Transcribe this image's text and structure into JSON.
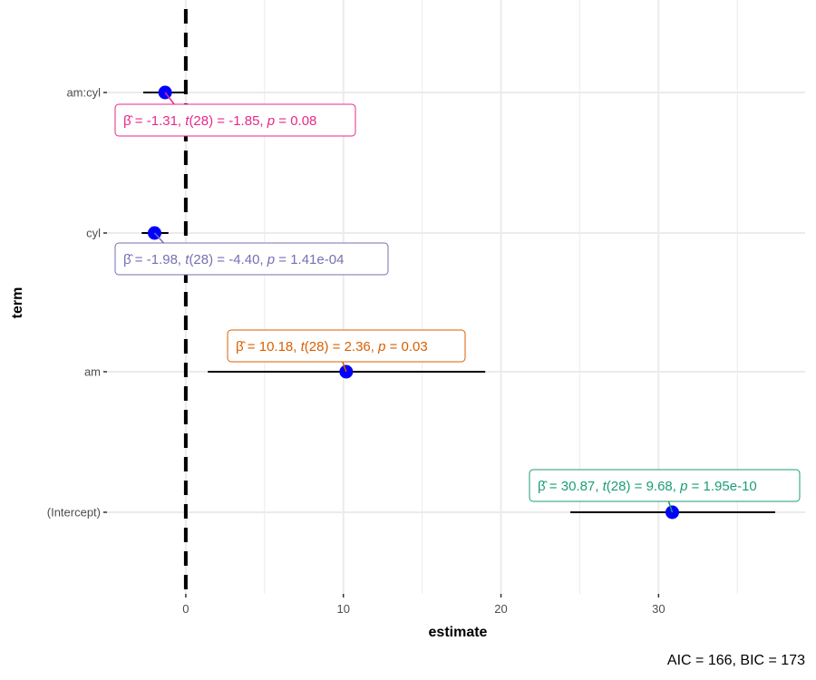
{
  "chart_data": {
    "type": "dot-whisker",
    "xlabel": "estimate",
    "ylabel": "term",
    "xlim": [
      -5,
      39.3
    ],
    "x_ticks": [
      0,
      10,
      20,
      30
    ],
    "x_minor_grid": [
      5,
      15,
      25,
      35
    ],
    "grid": true,
    "reference_line": {
      "x": 0,
      "style": "dashed",
      "color": "#000000"
    },
    "point_color": "#0000FF",
    "caption": "AIC = 166, BIC = 173",
    "terms": [
      {
        "term": "am:cyl",
        "estimate": -1.31,
        "conf_low": -2.7,
        "conf_high": 0.1,
        "df": "28",
        "estimate_label": "-1.31",
        "statistic_label": "-1.85",
        "p_label": "0.08",
        "color": "#E7298A"
      },
      {
        "term": "cyl",
        "estimate": -1.98,
        "conf_low": -2.8,
        "conf_high": -1.1,
        "df": "28",
        "estimate_label": "-1.98",
        "statistic_label": "-4.40",
        "p_label": "1.41e-04",
        "color": "#7570B3"
      },
      {
        "term": "am",
        "estimate": 10.18,
        "conf_low": 1.4,
        "conf_high": 19.0,
        "df": "28",
        "estimate_label": "10.18",
        "statistic_label": "2.36",
        "p_label": "0.03",
        "color": "#D95F02"
      },
      {
        "term": "(Intercept)",
        "estimate": 30.87,
        "conf_low": 24.4,
        "conf_high": 37.4,
        "df": "28",
        "estimate_label": "30.87",
        "statistic_label": "9.68",
        "p_label": "1.95e-10",
        "color": "#1B9E77"
      }
    ]
  }
}
